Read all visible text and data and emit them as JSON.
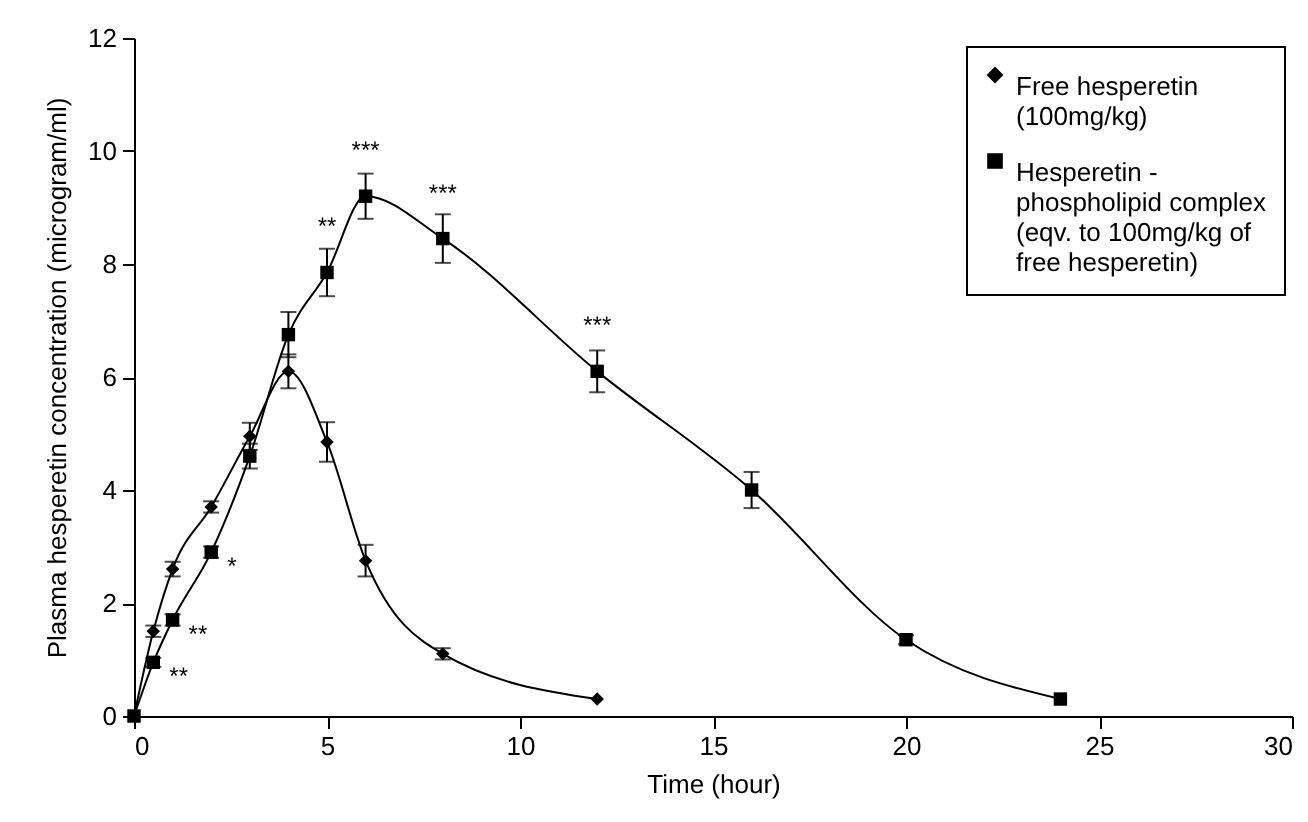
{
  "chart_data": {
    "type": "line",
    "xlabel": "Time (hour)",
    "ylabel": "Plasma hesperetin concentration (microgram/ml)",
    "xlim": [
      0,
      30
    ],
    "xticks": [
      0,
      5,
      10,
      15,
      20,
      25,
      30
    ],
    "ylim": [
      0,
      12
    ],
    "yticks": [
      0,
      2,
      4,
      6,
      8,
      10,
      12
    ],
    "grid": false,
    "legend": "top right",
    "line_style": "solid",
    "series": [
      {
        "name": "Free hesperetin (100mg/kg)",
        "color": "#000000",
        "marker": "diamond",
        "x": [
          0,
          0.5,
          1,
          2,
          3,
          4,
          5,
          6,
          8,
          12
        ],
        "values": [
          0,
          1.5,
          2.6,
          3.7,
          4.95,
          6.1,
          4.85,
          2.75,
          1.1,
          0.3
        ],
        "errors": [
          null,
          0.1,
          0.13,
          0.1,
          0.24,
          0.3,
          0.35,
          0.28,
          0.1,
          null
        ]
      },
      {
        "name": "Hesperetin - phospholipid complex (eqv. to 100mg/kg of free hesperetin)",
        "color": "#000000",
        "marker": "square",
        "x": [
          0,
          0.5,
          1,
          2,
          3,
          4,
          5,
          6,
          8,
          12,
          16,
          20,
          24
        ],
        "values": [
          0,
          0.95,
          1.7,
          2.9,
          4.6,
          6.75,
          7.85,
          9.2,
          8.45,
          6.1,
          4.0,
          1.35,
          0.3
        ],
        "errors": [
          null,
          0.08,
          0.1,
          0.1,
          0.22,
          0.4,
          0.42,
          0.4,
          0.43,
          0.37,
          0.32,
          0.08,
          null
        ]
      }
    ],
    "annotations": [
      {
        "text": "**",
        "x": 0.5,
        "y": 0.95
      },
      {
        "text": "**",
        "x": 1,
        "y": 1.7
      },
      {
        "text": "*",
        "x": 2,
        "y": 2.9
      },
      {
        "text": "**",
        "x": 5,
        "y": 7.85
      },
      {
        "text": "***",
        "x": 6,
        "y": 9.2
      },
      {
        "text": "***",
        "x": 8,
        "y": 8.45
      },
      {
        "text": "***",
        "x": 12,
        "y": 6.1
      }
    ]
  }
}
